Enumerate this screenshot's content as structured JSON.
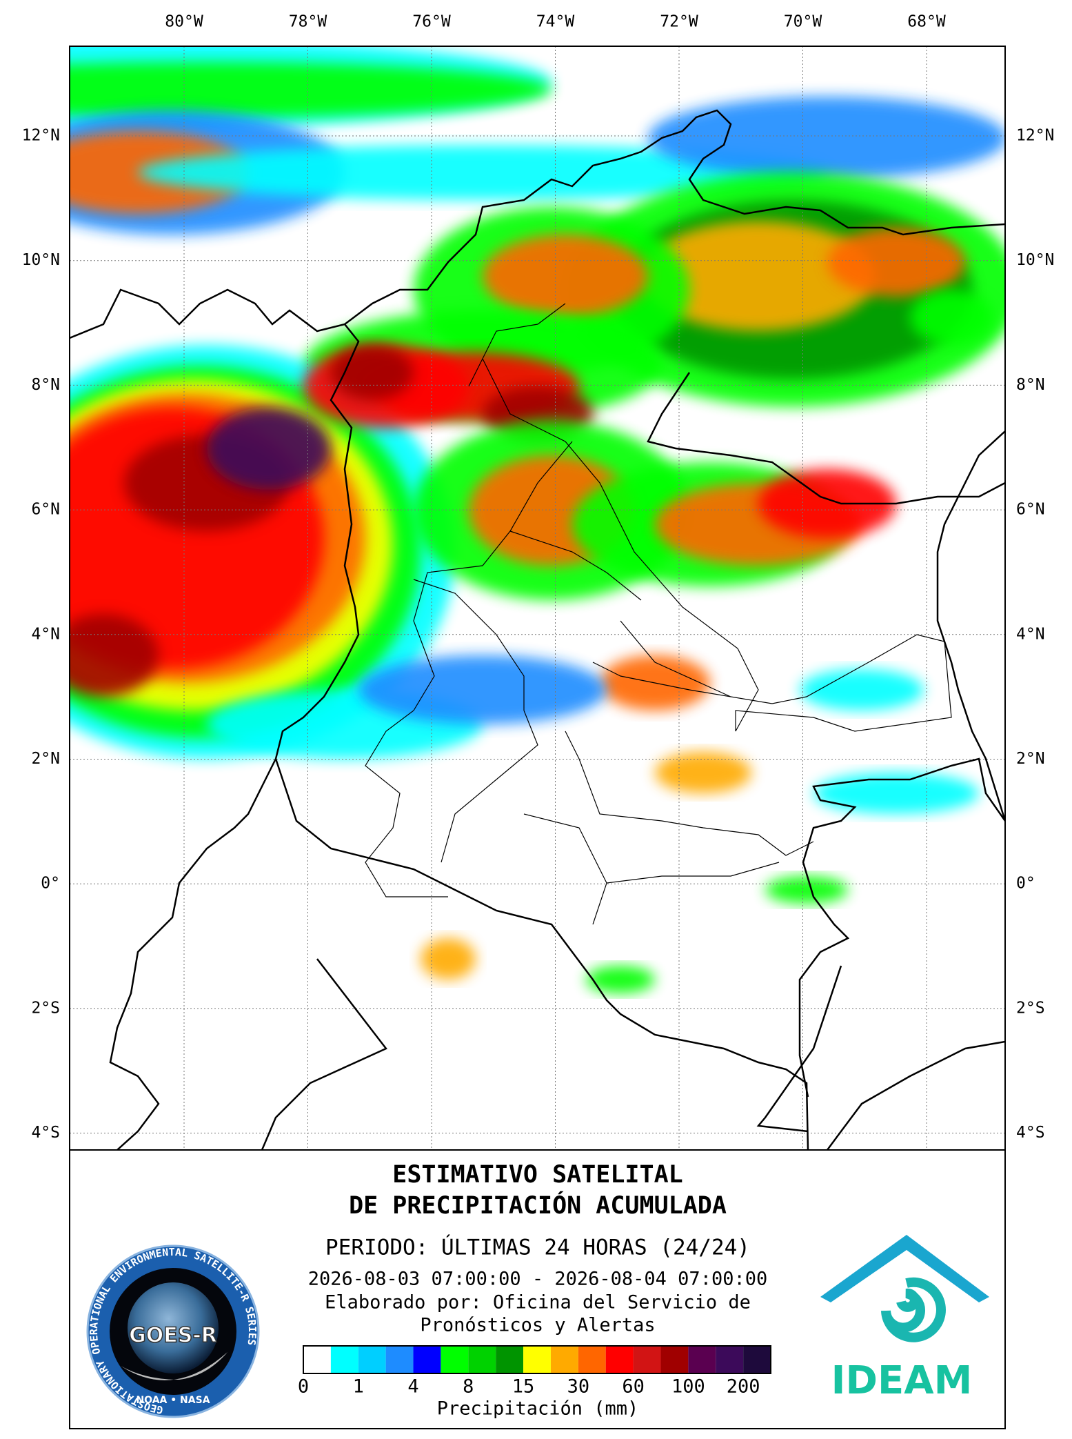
{
  "map": {
    "longitudes": [
      "80°W",
      "78°W",
      "76°W",
      "74°W",
      "72°W",
      "70°W",
      "68°W"
    ],
    "latitudes": [
      "12°N",
      "10°N",
      "8°N",
      "6°N",
      "4°N",
      "2°N",
      "0°",
      "2°S",
      "4°S"
    ]
  },
  "panel": {
    "title": [
      "ESTIMATIVO SATELITAL",
      "DE PRECIPITACIÓN ACUMULADA"
    ],
    "period": "PERIODO: ÚLTIMAS 24 HORAS (24/24)",
    "dates": "2026-08-03 07:00:00 - 2026-08-04 07:00:00",
    "credit": [
      "Elaborado por: Oficina del Servicio de",
      "Pronósticos y Alertas"
    ],
    "legend": {
      "colors": [
        "#ffffff",
        "#00ffff",
        "#00cfff",
        "#1e8cff",
        "#0000ff",
        "#00ff00",
        "#00d200",
        "#009400",
        "#ffff00",
        "#ffaa00",
        "#ff6600",
        "#ff0000",
        "#d21414",
        "#a00000",
        "#5a0050",
        "#3c0a5a",
        "#1e0a3c"
      ],
      "labels": [
        "0",
        "1",
        "4",
        "8",
        "15",
        "30",
        "60",
        "100",
        "200"
      ],
      "unit": "Precipitación (mm)"
    },
    "goes_logo": {
      "name": "GOES-R",
      "ring": "GEOSTATIONARY OPERATIONAL ENVIRONMENTAL SATELLITE-R SERIES",
      "agencies": "NOAA • NASA"
    },
    "ideam_logo": "IDEAM"
  }
}
